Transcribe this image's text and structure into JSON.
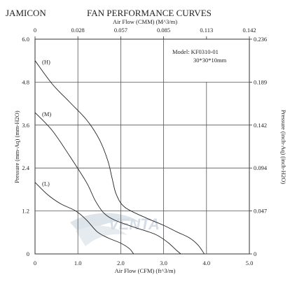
{
  "header": {
    "brand": "JAMICON",
    "title": "FAN PERFORMANCE CURVES"
  },
  "chart_data": {
    "type": "line",
    "x_bottom": {
      "label": "Air Flow (CFM) (ft^3/m)",
      "range": [
        0,
        5
      ],
      "ticks": [
        "0",
        "1.0",
        "2.0",
        "3.0",
        "4.0",
        "5.0"
      ]
    },
    "x_top": {
      "label": "Air Flow (CMM) (M^3/m)",
      "ticks": [
        "0",
        "0.028",
        "0.057",
        "0.085",
        "0.113",
        "0.142"
      ]
    },
    "y_left": {
      "label": "Pressure (mm-Aq) (mm-H2O)",
      "range": [
        0,
        6
      ],
      "ticks": [
        "0",
        "1.2",
        "2.4",
        "3.6",
        "4.8",
        "6.0"
      ]
    },
    "y_right": {
      "label": "Pressure (inch-Aq) (inch-H2O)",
      "ticks": [
        "0",
        "0.047",
        "0.094",
        "0.142",
        "0.189",
        "0.236"
      ]
    },
    "grid": true,
    "series": [
      {
        "name": "(H)",
        "points": [
          [
            0,
            5.4
          ],
          [
            0.4,
            4.75
          ],
          [
            0.8,
            4.25
          ],
          [
            1.2,
            3.75
          ],
          [
            1.5,
            3.2
          ],
          [
            1.7,
            2.6
          ],
          [
            1.8,
            2.1
          ],
          [
            1.9,
            1.65
          ],
          [
            2.1,
            1.3
          ],
          [
            2.6,
            1.0
          ],
          [
            3.0,
            0.8
          ],
          [
            3.3,
            0.62
          ],
          [
            3.6,
            0.45
          ],
          [
            3.8,
            0.25
          ],
          [
            3.95,
            0
          ]
        ]
      },
      {
        "name": "(M)",
        "points": [
          [
            0,
            3.95
          ],
          [
            0.4,
            3.45
          ],
          [
            0.8,
            2.75
          ],
          [
            1.2,
            2.0
          ],
          [
            1.4,
            1.5
          ],
          [
            1.6,
            1.15
          ],
          [
            1.85,
            0.95
          ],
          [
            2.3,
            0.75
          ],
          [
            2.8,
            0.55
          ],
          [
            3.1,
            0.32
          ],
          [
            3.3,
            0.1
          ],
          [
            3.4,
            0
          ]
        ]
      },
      {
        "name": "(L)",
        "points": [
          [
            0,
            2.0
          ],
          [
            0.3,
            1.65
          ],
          [
            0.6,
            1.4
          ],
          [
            0.95,
            1.2
          ],
          [
            1.2,
            0.95
          ],
          [
            1.45,
            0.62
          ],
          [
            1.7,
            0.45
          ],
          [
            2.0,
            0.3
          ],
          [
            2.2,
            0.15
          ],
          [
            2.3,
            0
          ]
        ]
      }
    ],
    "annotations": [
      "Model:  KF0310-01",
      "30*30*10mm"
    ]
  },
  "watermark": "VENTA"
}
